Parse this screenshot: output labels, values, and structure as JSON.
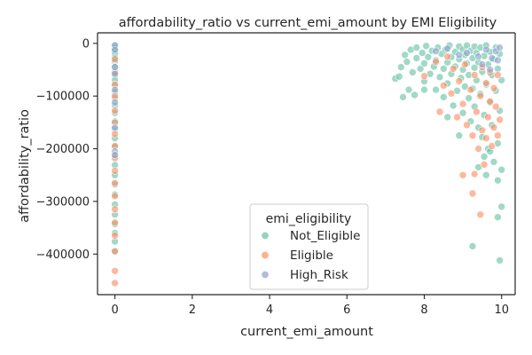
{
  "chart_data": {
    "type": "scatter",
    "title": "affordability_ratio vs current_emi_amount by EMI Eligibility",
    "xlabel": "current_emi_amount",
    "ylabel": "affordability_ratio",
    "xlim": [
      -0.45,
      10.35
    ],
    "ylim": [
      -477000,
      20000
    ],
    "xticks": [
      0,
      2,
      4,
      6,
      8,
      10
    ],
    "yticks": [
      0,
      -100000,
      -200000,
      -300000,
      -400000
    ],
    "xtick_labels": [
      "0",
      "2",
      "4",
      "6",
      "8",
      "10"
    ],
    "ytick_labels": [
      "0",
      "−100000",
      "−200000",
      "−300000",
      "−400000"
    ],
    "grid": false,
    "legend": {
      "title": "emi_eligibility",
      "placement": "lower center",
      "entries": [
        "Not_Eligible",
        "Eligible",
        "High_Risk"
      ]
    },
    "colors": {
      "Not_Eligible": "#66c2a5",
      "Eligible": "#fc8d62",
      "High_Risk": "#8da0cb"
    },
    "series": [
      {
        "name": "Not_Eligible",
        "points": [
          [
            0,
            -3000
          ],
          [
            0,
            -8000
          ],
          [
            0,
            -14000
          ],
          [
            0,
            -20000
          ],
          [
            0,
            -27000
          ],
          [
            0,
            -35000
          ],
          [
            0,
            -44000
          ],
          [
            0,
            -52000
          ],
          [
            0,
            -61000
          ],
          [
            0,
            -70000
          ],
          [
            0,
            -80000
          ],
          [
            0,
            -92000
          ],
          [
            0,
            -104000
          ],
          [
            0,
            -118000
          ],
          [
            0,
            -132000
          ],
          [
            0,
            -148000
          ],
          [
            0,
            -163000
          ],
          [
            0,
            -180000
          ],
          [
            0,
            -196000
          ],
          [
            0,
            -214000
          ],
          [
            0,
            -231000
          ],
          [
            0,
            -250000
          ],
          [
            0,
            -268000
          ],
          [
            0,
            -287000
          ],
          [
            0,
            -306000
          ],
          [
            0,
            -325000
          ],
          [
            0,
            -343000
          ],
          [
            0,
            -360000
          ],
          [
            0,
            -376000
          ],
          [
            0,
            -394000
          ],
          [
            7.25,
            -67000
          ],
          [
            7.35,
            -63000
          ],
          [
            7.4,
            -45000
          ],
          [
            7.5,
            -22000
          ],
          [
            7.55,
            -35000
          ],
          [
            7.65,
            -12000
          ],
          [
            7.7,
            -55000
          ],
          [
            7.8,
            -28000
          ],
          [
            7.8,
            -8000
          ],
          [
            7.9,
            -48000
          ],
          [
            7.95,
            -18000
          ],
          [
            8.0,
            -38000
          ],
          [
            8.0,
            -72000
          ],
          [
            8.05,
            -5000
          ],
          [
            8.1,
            -26000
          ],
          [
            8.15,
            -58000
          ],
          [
            8.2,
            -14000
          ],
          [
            8.25,
            -44000
          ],
          [
            8.3,
            -88000
          ],
          [
            8.3,
            -32000
          ],
          [
            8.35,
            -8000
          ],
          [
            8.4,
            -64000
          ],
          [
            8.45,
            -20000
          ],
          [
            8.5,
            -48000
          ],
          [
            8.5,
            -102000
          ],
          [
            8.55,
            -12000
          ],
          [
            8.6,
            -36000
          ],
          [
            8.6,
            -76000
          ],
          [
            8.65,
            -4000
          ],
          [
            8.7,
            -26000
          ],
          [
            8.7,
            -58000
          ],
          [
            8.75,
            -118000
          ],
          [
            8.8,
            -16000
          ],
          [
            8.8,
            -44000
          ],
          [
            8.85,
            -90000
          ],
          [
            8.9,
            -6000
          ],
          [
            8.9,
            -30000
          ],
          [
            8.95,
            -66000
          ],
          [
            9.0,
            -12000
          ],
          [
            9.0,
            -50000
          ],
          [
            9.0,
            -132000
          ],
          [
            9.05,
            -22000
          ],
          [
            9.05,
            -82000
          ],
          [
            9.1,
            -4000
          ],
          [
            9.1,
            -38000
          ],
          [
            9.15,
            -104000
          ],
          [
            9.15,
            -60000
          ],
          [
            9.2,
            -14000
          ],
          [
            9.2,
            -148000
          ],
          [
            9.25,
            -28000
          ],
          [
            9.25,
            -86000
          ],
          [
            9.3,
            -6000
          ],
          [
            9.3,
            -46000
          ],
          [
            9.3,
            -120000
          ],
          [
            9.35,
            -18000
          ],
          [
            9.35,
            -70000
          ],
          [
            9.4,
            -160000
          ],
          [
            9.4,
            -36000
          ],
          [
            9.45,
            -96000
          ],
          [
            9.45,
            -8000
          ],
          [
            9.5,
            -54000
          ],
          [
            9.5,
            -178000
          ],
          [
            9.55,
            -24000
          ],
          [
            9.55,
            -136000
          ],
          [
            9.6,
            -78000
          ],
          [
            9.6,
            -4000
          ],
          [
            9.65,
            -40000
          ],
          [
            9.65,
            -200000
          ],
          [
            9.7,
            -112000
          ],
          [
            9.7,
            -16000
          ],
          [
            9.75,
            -60000
          ],
          [
            9.75,
            -155000
          ],
          [
            9.8,
            -30000
          ],
          [
            9.8,
            -225000
          ],
          [
            9.85,
            -90000
          ],
          [
            9.85,
            -8000
          ],
          [
            9.9,
            -48000
          ],
          [
            9.9,
            -190000
          ],
          [
            9.9,
            -260000
          ],
          [
            9.95,
            -20000
          ],
          [
            9.95,
            -128000
          ],
          [
            10.0,
            -70000
          ],
          [
            10.0,
            -240000
          ],
          [
            10.0,
            -310000
          ],
          [
            9.9,
            -330000
          ],
          [
            9.4,
            -235000
          ],
          [
            9.55,
            -215000
          ],
          [
            9.6,
            -250000
          ],
          [
            9.7,
            -205000
          ],
          [
            9.25,
            -385000
          ],
          [
            9.95,
            -412000
          ],
          [
            8.9,
            -175000
          ],
          [
            8.6,
            -140000
          ],
          [
            8.0,
            -88000
          ],
          [
            7.75,
            -98000
          ],
          [
            7.6,
            -88000
          ],
          [
            7.45,
            -102000
          ]
        ]
      },
      {
        "name": "Eligible",
        "points": [
          [
            0,
            -30000
          ],
          [
            0,
            -55000
          ],
          [
            0,
            -78000
          ],
          [
            0,
            -100000
          ],
          [
            0,
            -128000
          ],
          [
            0,
            -150000
          ],
          [
            0,
            -172000
          ],
          [
            0,
            -195000
          ],
          [
            0,
            -218000
          ],
          [
            0,
            -242000
          ],
          [
            0,
            -265000
          ],
          [
            0,
            -290000
          ],
          [
            0,
            -315000
          ],
          [
            0,
            -340000
          ],
          [
            0,
            -365000
          ],
          [
            0,
            -395000
          ],
          [
            0,
            -432000
          ],
          [
            0,
            -455000
          ],
          [
            8.0,
            -62000
          ],
          [
            8.3,
            -35000
          ],
          [
            8.5,
            -80000
          ],
          [
            8.6,
            -25000
          ],
          [
            8.7,
            -95000
          ],
          [
            8.75,
            -48000
          ],
          [
            8.85,
            -140000
          ],
          [
            8.9,
            -72000
          ],
          [
            9.0,
            -115000
          ],
          [
            9.05,
            -40000
          ],
          [
            9.1,
            -155000
          ],
          [
            9.2,
            -88000
          ],
          [
            9.25,
            -175000
          ],
          [
            9.3,
            -60000
          ],
          [
            9.35,
            -130000
          ],
          [
            9.4,
            -200000
          ],
          [
            9.45,
            -100000
          ],
          [
            9.5,
            -45000
          ],
          [
            9.5,
            -165000
          ],
          [
            9.55,
            -230000
          ],
          [
            9.6,
            -75000
          ],
          [
            9.6,
            -180000
          ],
          [
            9.65,
            -140000
          ],
          [
            9.7,
            -110000
          ],
          [
            9.7,
            -55000
          ],
          [
            9.75,
            -195000
          ],
          [
            9.8,
            -160000
          ],
          [
            9.8,
            -85000
          ],
          [
            9.85,
            -120000
          ],
          [
            9.9,
            -175000
          ],
          [
            9.9,
            -60000
          ],
          [
            9.95,
            -145000
          ],
          [
            9.3,
            -248000
          ],
          [
            9.25,
            -285000
          ],
          [
            9.45,
            -325000
          ],
          [
            9.0,
            -250000
          ],
          [
            8.4,
            -130000
          ]
        ]
      },
      {
        "name": "High_Risk",
        "points": [
          [
            0,
            -4000
          ],
          [
            0,
            -12000
          ],
          [
            0,
            -45000
          ],
          [
            0,
            -58000
          ],
          [
            0,
            -88000
          ],
          [
            0,
            -112000
          ],
          [
            0,
            -160000
          ],
          [
            0,
            -205000
          ],
          [
            0,
            -212000
          ],
          [
            8.3,
            -15000
          ],
          [
            8.6,
            -10000
          ],
          [
            8.9,
            -22000
          ],
          [
            9.1,
            -18000
          ],
          [
            9.4,
            -25000
          ],
          [
            9.6,
            -12000
          ],
          [
            9.75,
            -28000
          ],
          [
            9.85,
            -15000
          ],
          [
            9.95,
            -8000
          ],
          [
            9.5,
            -40000
          ],
          [
            9.7,
            -50000
          ],
          [
            9.9,
            -32000
          ]
        ]
      }
    ]
  }
}
